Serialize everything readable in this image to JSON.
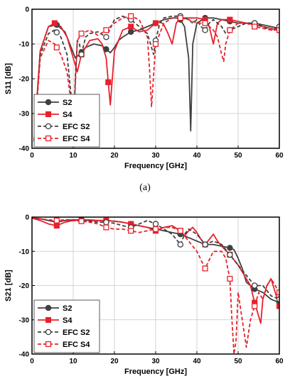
{
  "panel_labels": [
    "(a)"
  ],
  "chart_data": [
    {
      "type": "line",
      "xlabel": "Frequency [GHz]",
      "ylabel": "S11 [dB]",
      "xlim": [
        0,
        60
      ],
      "ylim": [
        -40,
        0
      ],
      "xticks": [
        0,
        10,
        20,
        30,
        40,
        50,
        60
      ],
      "yticks": [
        0,
        -10,
        -20,
        -30,
        -40
      ],
      "grid": true,
      "legend": "bottom-left",
      "series": [
        {
          "name": "S2",
          "color": "#404040",
          "dash": "solid",
          "marker": "circle-filled",
          "x": [
            0.5,
            2,
            4,
            6,
            8,
            9.5,
            10.5,
            11.5,
            13,
            15,
            17,
            18,
            19,
            20,
            21,
            22,
            24,
            26,
            28,
            30,
            32,
            34,
            35,
            36,
            37,
            38,
            38.5,
            39,
            40,
            42,
            44,
            46,
            48,
            50,
            52,
            54,
            56,
            58,
            60
          ],
          "y": [
            -38,
            -12,
            -5,
            -4.5,
            -6.5,
            -11,
            -14,
            -13,
            -11,
            -10,
            -10.5,
            -11.5,
            -12.5,
            -11,
            -9,
            -8,
            -6.5,
            -6,
            -5,
            -4,
            -3,
            -2.5,
            -2.5,
            -3,
            -5,
            -14,
            -35,
            -10,
            -4,
            -2.5,
            -2.5,
            -3,
            -3.5,
            -4,
            -4,
            -4,
            -4.5,
            -5,
            -5.5
          ],
          "marker_x": [
            6,
            12,
            18,
            24,
            30,
            36,
            42,
            48,
            54,
            60
          ]
        },
        {
          "name": "S4",
          "color": "#e8212b",
          "dash": "solid",
          "marker": "square-filled",
          "x": [
            0.5,
            2,
            4,
            5.5,
            7,
            8.5,
            10,
            11,
            12,
            14,
            16,
            17,
            18,
            18.5,
            19,
            20,
            22,
            24,
            26,
            28,
            30,
            31,
            32,
            33,
            34,
            35,
            36,
            38,
            40,
            42,
            43,
            44,
            45,
            46,
            48,
            50,
            52,
            54,
            56,
            58,
            60
          ],
          "y": [
            -38,
            -12,
            -5,
            -4,
            -5,
            -8,
            -14,
            -18,
            -13,
            -9,
            -8.5,
            -10,
            -14,
            -21,
            -27.5,
            -12,
            -6,
            -5,
            -6.5,
            -6,
            -4,
            -3.5,
            -4.5,
            -7,
            -10,
            -4,
            -2.5,
            -2.5,
            -2.5,
            -3,
            -5,
            -10,
            -4,
            -3,
            -3,
            -3.5,
            -4,
            -4.5,
            -5,
            -5.5,
            -6
          ],
          "marker_x": [
            5.5,
            12,
            18.5,
            24,
            30,
            36,
            42,
            48,
            54,
            60
          ]
        },
        {
          "name": "EFC S2",
          "color": "#404040",
          "dash": "dashed",
          "marker": "circle-open",
          "x": [
            0.5,
            2,
            4,
            5.5,
            7,
            8.5,
            9.5,
            10,
            10.5,
            11,
            11.5,
            12,
            13,
            14,
            16,
            18,
            20,
            22,
            24,
            26,
            28,
            29,
            29.5,
            30,
            31,
            32,
            34,
            36,
            38,
            39,
            40,
            41,
            42,
            43,
            44,
            46,
            47,
            48,
            50,
            52,
            54,
            56,
            58,
            60
          ],
          "y": [
            -38,
            -13,
            -7,
            -6,
            -8,
            -13,
            -25,
            -37,
            -20,
            -9,
            -10,
            -13,
            -8,
            -7,
            -6.5,
            -8,
            -3,
            -2,
            -3,
            -5,
            -7,
            -11,
            -13,
            -9,
            -4,
            -2.5,
            -2,
            -2,
            -3,
            -4,
            -3,
            -5,
            -6,
            -4,
            -3,
            -5,
            -7,
            -6,
            -5,
            -4,
            -4,
            -5,
            -6,
            -5
          ],
          "marker_x": [
            6,
            12,
            18,
            24,
            30,
            36,
            42,
            48,
            54,
            60
          ]
        },
        {
          "name": "EFC S4",
          "color": "#e8212b",
          "dash": "dashed",
          "marker": "square-open",
          "x": [
            0.5,
            2,
            4,
            5.5,
            7,
            8.5,
            9.5,
            10,
            10.5,
            11,
            12,
            14,
            16,
            18,
            20,
            22,
            24,
            26,
            28,
            28.5,
            29,
            30,
            32,
            34,
            36,
            38,
            40,
            42,
            44,
            45,
            46,
            46.5,
            47,
            48,
            50,
            52,
            54,
            56,
            58,
            60
          ],
          "y": [
            -38,
            -14,
            -9,
            -10,
            -13,
            -18,
            -27,
            -38,
            -22,
            -9,
            -7,
            -6,
            -7.5,
            -6,
            -4,
            -2.5,
            -2,
            -3,
            -8,
            -17,
            -28,
            -10,
            -4,
            -2.5,
            -2.5,
            -3,
            -4,
            -4,
            -6,
            -8,
            -13,
            -15,
            -10,
            -6,
            -4,
            -4,
            -5,
            -5.5,
            -6,
            -6
          ],
          "marker_x": [
            6,
            12,
            18,
            24,
            30,
            36,
            42,
            48,
            54,
            60
          ]
        }
      ]
    },
    {
      "type": "line",
      "xlabel": "Frequency [GHz]",
      "ylabel": "S21 [dB]",
      "xlim": [
        0,
        60
      ],
      "ylim": [
        -40,
        0
      ],
      "xticks": [
        0,
        10,
        20,
        30,
        40,
        50,
        60
      ],
      "yticks": [
        0,
        -10,
        -20,
        -30,
        -40
      ],
      "grid": true,
      "legend": "bottom-left",
      "series": [
        {
          "name": "S2",
          "color": "#404040",
          "dash": "solid",
          "marker": "circle-filled",
          "x": [
            0,
            2,
            4,
            6,
            8,
            10,
            12,
            14,
            16,
            18,
            20,
            22,
            24,
            26,
            28,
            30,
            32,
            34,
            36,
            38,
            40,
            42,
            44,
            46,
            48,
            49,
            50,
            51,
            52,
            54,
            56,
            58,
            60
          ],
          "y": [
            -0.3,
            -0.5,
            -1,
            -1.5,
            -1,
            -0.8,
            -0.8,
            -1,
            -1,
            -1,
            -1.2,
            -1.5,
            -2,
            -2.5,
            -3,
            -3.5,
            -4,
            -4.5,
            -5,
            -6,
            -7,
            -8,
            -8,
            -8.5,
            -9,
            -9.5,
            -12,
            -15,
            -19,
            -21,
            -22,
            -24,
            -25
          ],
          "marker_x": [
            6,
            12,
            18,
            24,
            30,
            36,
            42,
            48,
            54,
            60
          ]
        },
        {
          "name": "S4",
          "color": "#e8212b",
          "dash": "solid",
          "marker": "square-filled",
          "x": [
            0,
            2,
            4,
            6,
            8,
            10,
            12,
            14,
            16,
            18,
            20,
            22,
            24,
            26,
            28,
            30,
            32,
            34,
            36,
            37,
            38,
            39,
            40,
            41,
            42,
            43,
            44,
            45,
            46,
            48,
            50,
            52,
            53,
            54,
            55,
            55.5,
            56,
            57,
            58,
            59,
            60
          ],
          "y": [
            -0.3,
            -1,
            -2,
            -2.5,
            -1.5,
            -1,
            -0.8,
            -0.8,
            -1,
            -1,
            -1.2,
            -1.5,
            -2,
            -2.5,
            -3,
            -4,
            -3,
            -2.5,
            -4,
            -5.5,
            -4,
            -3,
            -4.5,
            -6.5,
            -8,
            -6.5,
            -5,
            -7,
            -8.5,
            -11,
            -14,
            -18,
            -20,
            -25,
            -29,
            -31,
            -24,
            -20,
            -18,
            -22,
            -26
          ],
          "marker_x": [
            6,
            12,
            18,
            24,
            30,
            36,
            42,
            48,
            54,
            60
          ]
        },
        {
          "name": "EFC S2",
          "color": "#404040",
          "dash": "dashed",
          "marker": "circle-open",
          "x": [
            0,
            2,
            4,
            6,
            8,
            10,
            12,
            14,
            16,
            18,
            20,
            22,
            24,
            26,
            28,
            30,
            32,
            34,
            35,
            36,
            37,
            38,
            40,
            42,
            44,
            46,
            48,
            50,
            52,
            54,
            56,
            58,
            60
          ],
          "y": [
            -0.3,
            -0.5,
            -0.8,
            -1,
            -0.8,
            -0.8,
            -1,
            -1.2,
            -1.5,
            -1.5,
            -1.8,
            -2.5,
            -3,
            -2,
            -1,
            -2,
            -3.5,
            -5,
            -6.5,
            -8,
            -5,
            -3.5,
            -5,
            -8,
            -7,
            -8,
            -11,
            -14,
            -17,
            -20,
            -20,
            -23,
            -24
          ],
          "marker_x": [
            6,
            12,
            18,
            24,
            30,
            36,
            42,
            48,
            54,
            60
          ]
        },
        {
          "name": "EFC S4",
          "color": "#e8212b",
          "dash": "dashed",
          "marker": "square-open",
          "x": [
            0,
            2,
            4,
            6,
            8,
            10,
            12,
            14,
            16,
            18,
            20,
            22,
            24,
            26,
            28,
            30,
            32,
            34,
            36,
            38,
            40,
            42,
            44,
            46,
            47,
            48,
            48.5,
            49,
            49.5,
            50,
            51,
            52,
            53,
            54,
            55,
            56,
            57,
            58,
            59,
            60
          ],
          "y": [
            -0.3,
            -0.5,
            -0.8,
            -1,
            -1,
            -1,
            -1.2,
            -1.5,
            -2,
            -3,
            -3.5,
            -3.5,
            -4,
            -4.5,
            -4,
            -3.5,
            -3,
            -3,
            -4,
            -7,
            -10,
            -15,
            -10,
            -10,
            -12,
            -18,
            -30,
            -40,
            -36,
            -22,
            -30,
            -38,
            -30,
            -26,
            -22,
            -24,
            -20,
            -18,
            -20,
            -22
          ],
          "marker_x": [
            6,
            12,
            18,
            24,
            30,
            36,
            42,
            48,
            54,
            60
          ]
        }
      ]
    }
  ]
}
